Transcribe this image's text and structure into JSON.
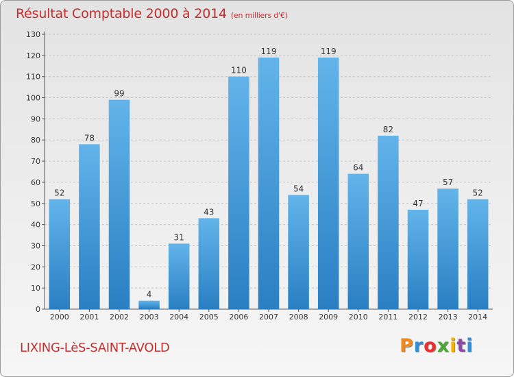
{
  "header": {
    "title": "Résultat Comptable 2000 à 2014",
    "subtitle": "(en milliers d'€)"
  },
  "footer": {
    "commune": "LIXING-LèS-SAINT-AVOLD",
    "logo": "Proxiti",
    "logo_colors": [
      "#f08a1c",
      "#2f8fd8",
      "#e8312f",
      "#4aa832",
      "#f2b600",
      "#8e44ad",
      "#2f8fd8"
    ]
  },
  "colors": {
    "bar_top": "#62b4ea",
    "bar_bottom": "#2a7fc3",
    "title": "#c03030",
    "background_top": "#e3e3e3",
    "background_bottom": "#f6f6f6"
  },
  "chart_data": {
    "type": "bar",
    "title": "Résultat Comptable 2000 à 2014",
    "subtitle": "(en milliers d'€)",
    "categories": [
      "2000",
      "2001",
      "2002",
      "2003",
      "2004",
      "2005",
      "2006",
      "2007",
      "2008",
      "2009",
      "2010",
      "2011",
      "2012",
      "2013",
      "2014"
    ],
    "values": [
      52,
      78,
      99,
      4,
      31,
      43,
      110,
      119,
      54,
      119,
      64,
      82,
      47,
      57,
      52
    ],
    "ylim": [
      0,
      130
    ],
    "yticks": [
      0,
      10,
      20,
      30,
      40,
      50,
      60,
      70,
      80,
      90,
      100,
      110,
      120,
      130
    ],
    "grid": true,
    "data_labels": true
  }
}
